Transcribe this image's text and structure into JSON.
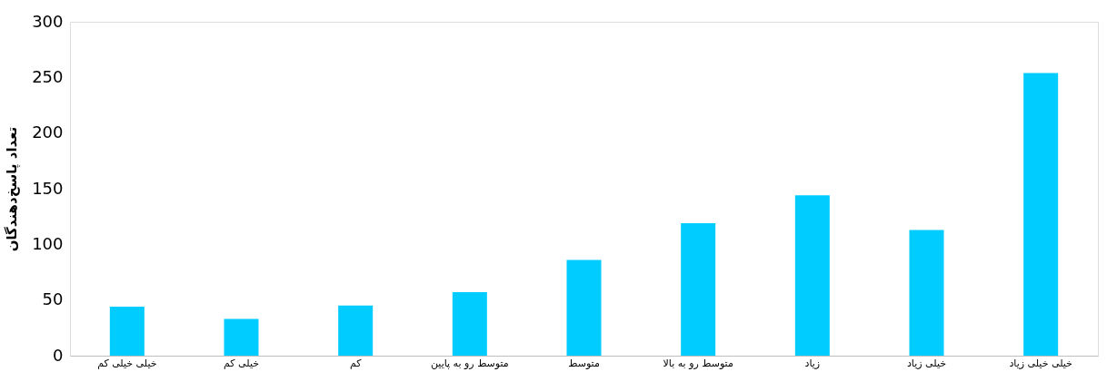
{
  "chart_data": {
    "type": "bar",
    "ylabel": "تعداد پاسخ‌دهندگان",
    "categories": [
      "خیلی خیلی کم",
      "خیلی کم",
      "کم",
      "متوسط رو به پایین",
      "متوسط",
      "متوسط رو به بالا",
      "زیاد",
      "خیلی زیاد",
      "خیلی خیلی زیاد"
    ],
    "values": [
      44,
      33,
      45,
      57,
      86,
      119,
      144,
      113,
      254
    ],
    "color": "#00ccff",
    "ylim": [
      0,
      300
    ],
    "yticks": [
      0,
      50,
      100,
      150,
      200,
      250,
      300
    ],
    "grid": false
  }
}
